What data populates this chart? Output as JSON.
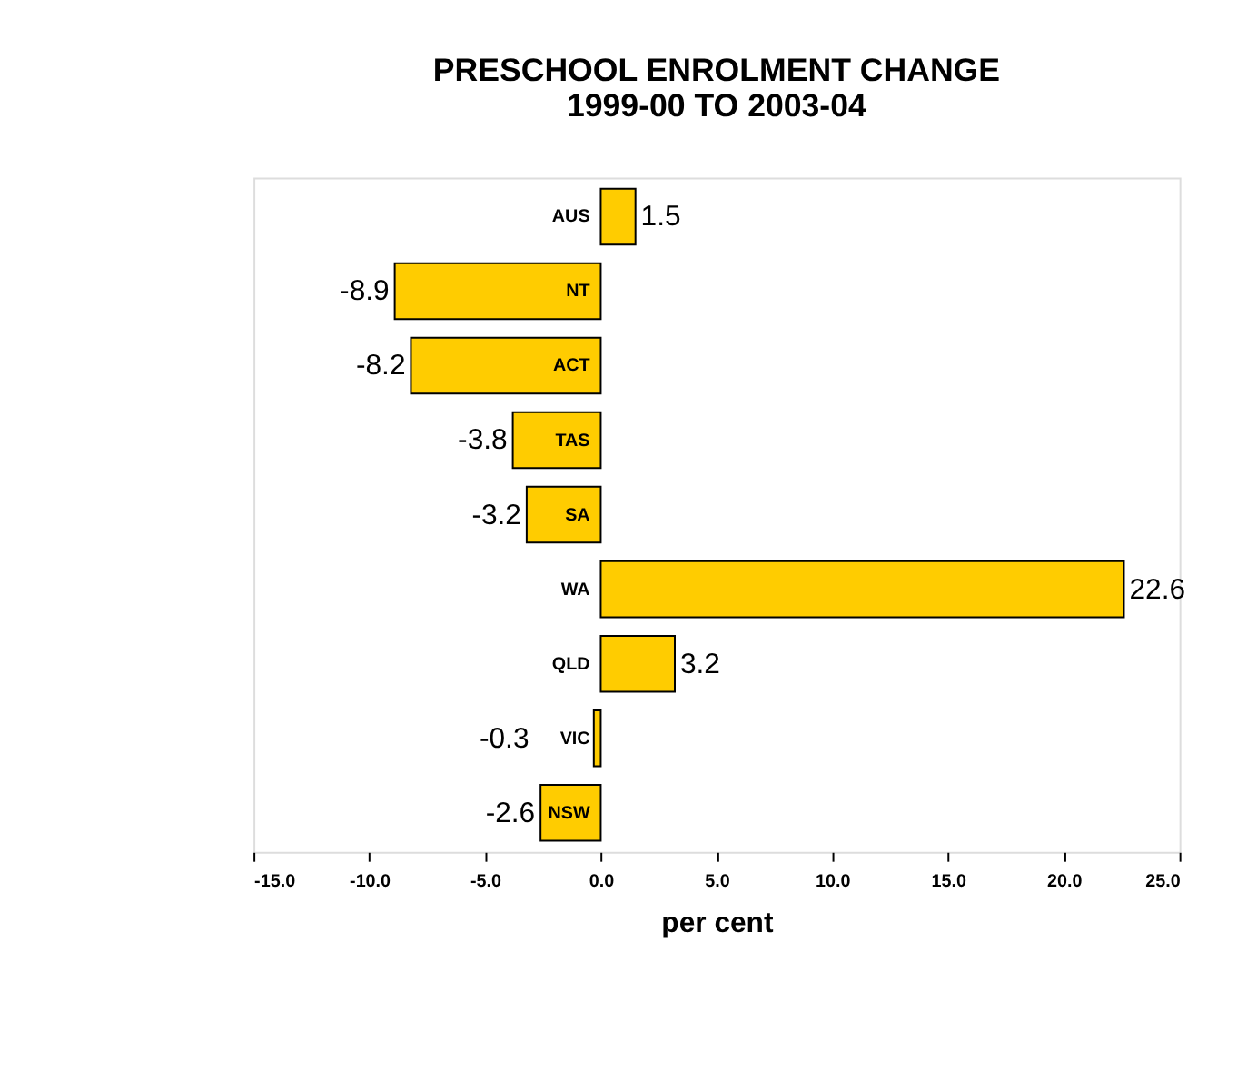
{
  "chart_data": {
    "type": "bar",
    "orientation": "horizontal",
    "title": "PRESCHOOL ENROLMENT CHANGE\n1999-00 TO 2003-04",
    "xlabel": "per cent",
    "categories": [
      "AUS",
      "NT",
      "ACT",
      "TAS",
      "SA",
      "WA",
      "QLD",
      "VIC",
      "NSW"
    ],
    "values": [
      1.5,
      -8.9,
      -8.2,
      -3.8,
      -3.2,
      22.6,
      3.2,
      -0.3,
      -2.6
    ],
    "color": "#ffcc00",
    "data_labels": true,
    "grid": false,
    "xlim": [
      -15,
      25
    ],
    "xticks": [
      {
        "value": -15,
        "label": "-15.0"
      },
      {
        "value": -10,
        "label": "-10.0"
      },
      {
        "value": -5,
        "label": "-5.0"
      },
      {
        "value": 0,
        "label": "0.0"
      },
      {
        "value": 5,
        "label": "5.0"
      },
      {
        "value": 10,
        "label": "10.0"
      },
      {
        "value": 15,
        "label": "15.0"
      },
      {
        "value": 20,
        "label": "20.0"
      },
      {
        "value": 25,
        "label": "25.0"
      }
    ]
  }
}
